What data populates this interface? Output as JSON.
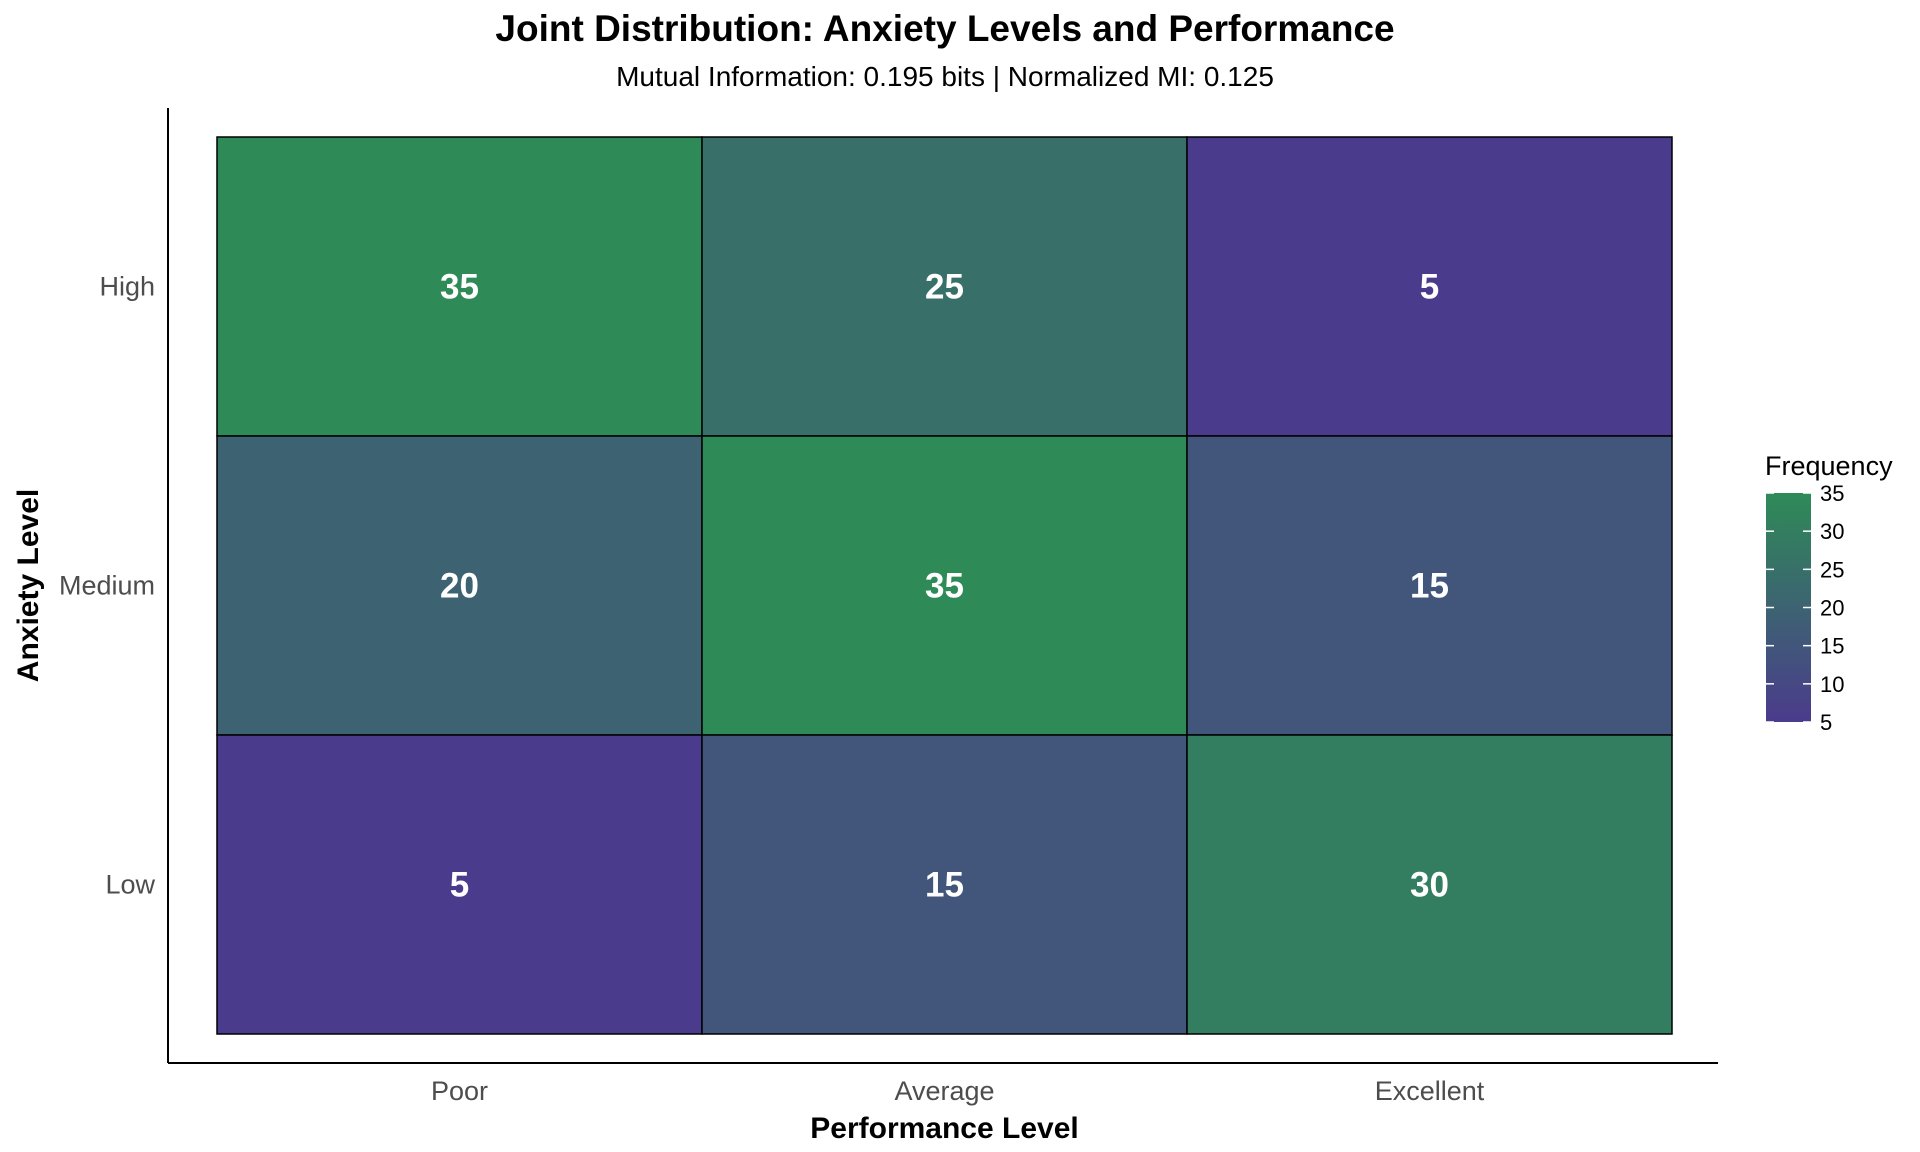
{
  "chart_data": {
    "type": "heatmap",
    "title": "Joint Distribution: Anxiety Levels and Performance",
    "subtitle": "Mutual Information: 0.195 bits | Normalized MI: 0.125",
    "xlabel": "Performance Level",
    "ylabel": "Anxiety Level",
    "x_categories": [
      "Poor",
      "Average",
      "Excellent"
    ],
    "y_categories": [
      "High",
      "Medium",
      "Low"
    ],
    "values": [
      [
        35,
        25,
        5
      ],
      [
        20,
        35,
        15
      ],
      [
        5,
        15,
        30
      ]
    ],
    "legend": {
      "title": "Frequency",
      "ticks": [
        35,
        30,
        25,
        20,
        15,
        10,
        5
      ],
      "min": 5,
      "max": 35,
      "position": "right"
    },
    "colors": {
      "low": "#4b3b8c",
      "high": "#2e8b57"
    },
    "grid": false
  }
}
